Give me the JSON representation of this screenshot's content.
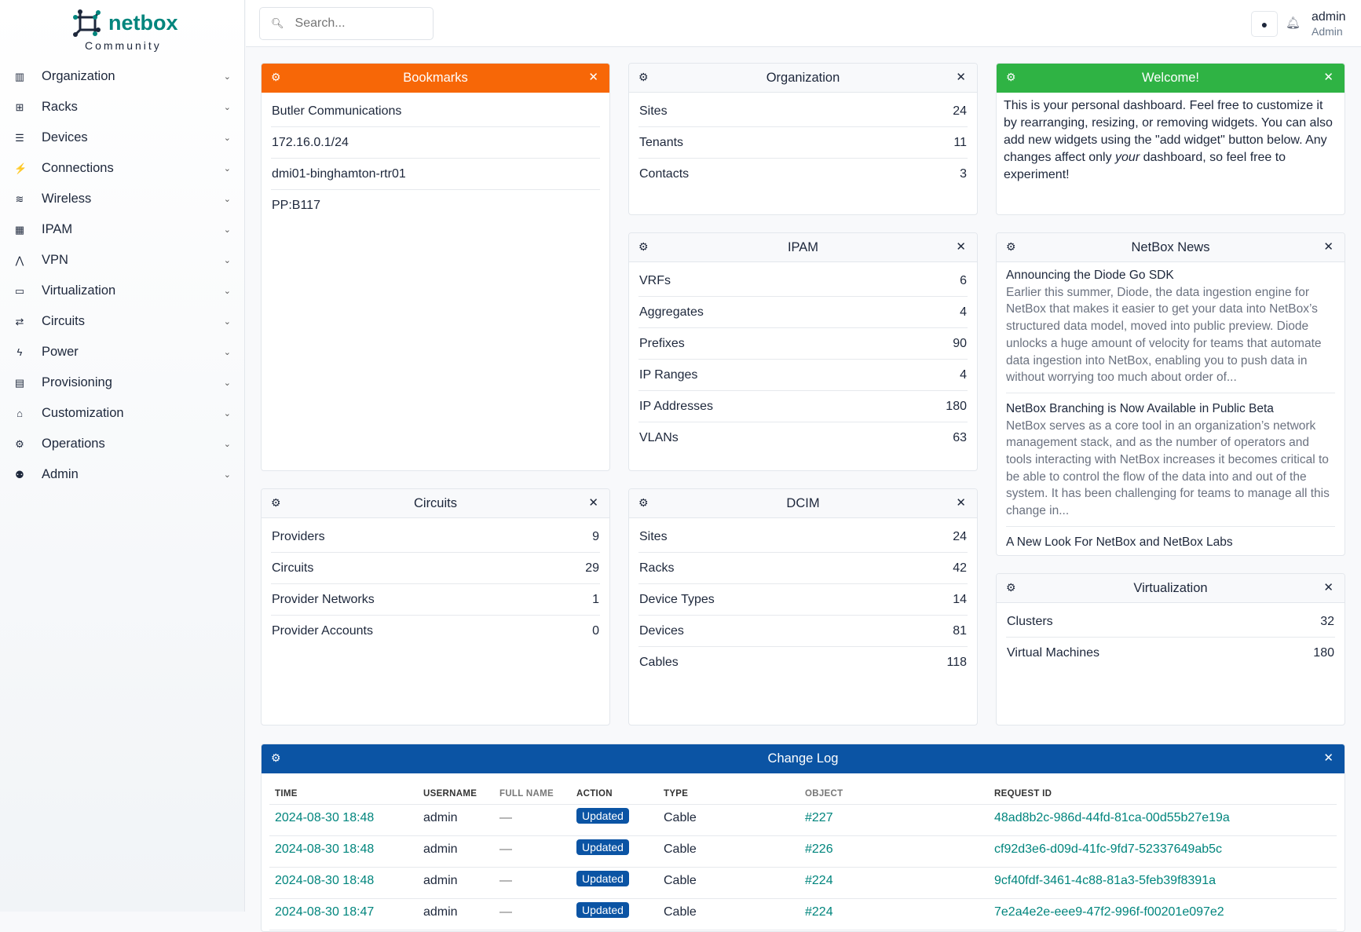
{
  "brand": {
    "name": "netbox",
    "edition": "Community",
    "color": "#00857d"
  },
  "sidebar": {
    "items": [
      {
        "label": "Organization",
        "icon": "building-icon"
      },
      {
        "label": "Racks",
        "icon": "rack-icon"
      },
      {
        "label": "Devices",
        "icon": "server-icon"
      },
      {
        "label": "Connections",
        "icon": "plug-icon"
      },
      {
        "label": "Wireless",
        "icon": "wifi-icon"
      },
      {
        "label": "IPAM",
        "icon": "counter-icon"
      },
      {
        "label": "VPN",
        "icon": "network-icon"
      },
      {
        "label": "Virtualization",
        "icon": "monitor-icon"
      },
      {
        "label": "Circuits",
        "icon": "transit-icon"
      },
      {
        "label": "Power",
        "icon": "flash-icon"
      },
      {
        "label": "Provisioning",
        "icon": "file-icon"
      },
      {
        "label": "Customization",
        "icon": "toolbox-icon"
      },
      {
        "label": "Operations",
        "icon": "cogs-icon"
      },
      {
        "label": "Admin",
        "icon": "users-icon"
      }
    ]
  },
  "topbar": {
    "search_placeholder": "Search...",
    "user": "admin",
    "role": "Admin"
  },
  "colors": {
    "bookmarks": "#f76707",
    "welcome": "#2fb344",
    "changelog": "#0b54a4",
    "link": "#00857d"
  },
  "widgets": {
    "bookmarks": {
      "title": "Bookmarks",
      "items": [
        "Butler Communications",
        "172.16.0.1/24",
        "dmi01-binghamton-rtr01",
        "PP:B117"
      ]
    },
    "organization": {
      "title": "Organization",
      "rows": [
        [
          "Sites",
          "24"
        ],
        [
          "Tenants",
          "11"
        ],
        [
          "Contacts",
          "3"
        ]
      ]
    },
    "welcome": {
      "title": "Welcome!",
      "text_a": "This is your personal dashboard. Feel free to customize it by rearranging, resizing, or removing widgets. You can also add new widgets using the \"add widget\" button below. Any changes affect only ",
      "text_em": "your",
      "text_b": " dashboard, so feel free to experiment!"
    },
    "ipam": {
      "title": "IPAM",
      "rows": [
        [
          "VRFs",
          "6"
        ],
        [
          "Aggregates",
          "4"
        ],
        [
          "Prefixes",
          "90"
        ],
        [
          "IP Ranges",
          "4"
        ],
        [
          "IP Addresses",
          "180"
        ],
        [
          "VLANs",
          "63"
        ]
      ]
    },
    "news": {
      "title": "NetBox News",
      "items": [
        {
          "title": "Announcing the Diode Go SDK",
          "desc": "Earlier this summer, Diode, the data ingestion engine for NetBox that makes it easier to get your data into NetBox’s structured data model, moved into public preview. Diode unlocks a huge amount of velocity for teams that automate data ingestion into NetBox, enabling you to push data in without worrying too much about order of..."
        },
        {
          "title": "NetBox Branching is Now Available in Public Beta",
          "desc": "NetBox serves as a core tool in an organization’s network management stack, and as the number of operators and tools interacting with NetBox increases it becomes critical to be able to control the flow of the data into and out of the system. It has been challenging for teams to manage all this change in..."
        },
        {
          "title": "A New Look For NetBox and NetBox Labs",
          "desc": ""
        }
      ]
    },
    "circuits": {
      "title": "Circuits",
      "rows": [
        [
          "Providers",
          "9"
        ],
        [
          "Circuits",
          "29"
        ],
        [
          "Provider Networks",
          "1"
        ],
        [
          "Provider Accounts",
          "0"
        ]
      ]
    },
    "dcim": {
      "title": "DCIM",
      "rows": [
        [
          "Sites",
          "24"
        ],
        [
          "Racks",
          "42"
        ],
        [
          "Device Types",
          "14"
        ],
        [
          "Devices",
          "81"
        ],
        [
          "Cables",
          "118"
        ]
      ]
    },
    "virtualization": {
      "title": "Virtualization",
      "rows": [
        [
          "Clusters",
          "32"
        ],
        [
          "Virtual Machines",
          "180"
        ]
      ]
    }
  },
  "changelog": {
    "title": "Change Log",
    "columns": [
      "TIME",
      "USERNAME",
      "FULL NAME",
      "ACTION",
      "TYPE",
      "OBJECT",
      "REQUEST ID"
    ],
    "rows": [
      [
        "2024-08-30 18:48",
        "admin",
        "—",
        "Updated",
        "Cable",
        "#227",
        "48ad8b2c-986d-44fd-81ca-00d55b27e19a"
      ],
      [
        "2024-08-30 18:48",
        "admin",
        "—",
        "Updated",
        "Cable",
        "#226",
        "cf92d3e6-d09d-41fc-9fd7-52337649ab5c"
      ],
      [
        "2024-08-30 18:48",
        "admin",
        "—",
        "Updated",
        "Cable",
        "#224",
        "9cf40fdf-3461-4c88-81a3-5feb39f8391a"
      ],
      [
        "2024-08-30 18:47",
        "admin",
        "—",
        "Updated",
        "Cable",
        "#224",
        "7e2a4e2e-eee9-47f2-996f-f00201e097e2"
      ]
    ]
  }
}
